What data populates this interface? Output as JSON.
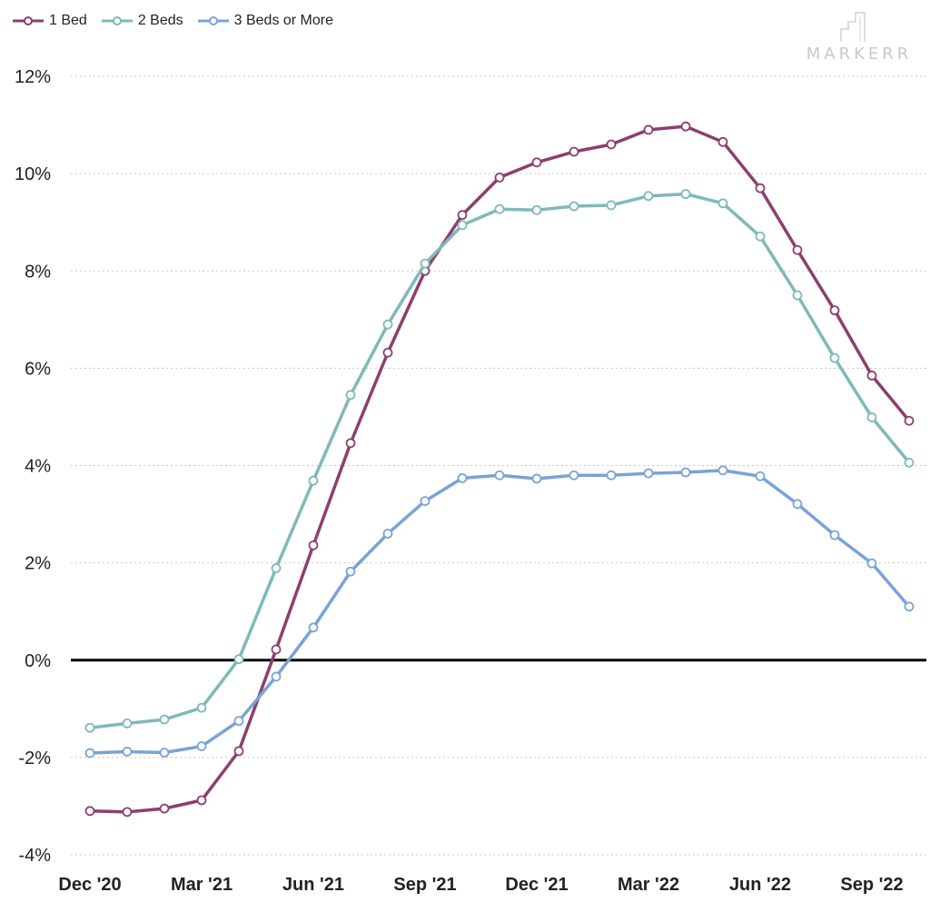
{
  "legend": [
    {
      "name": "1 Bed",
      "color": "#8c3f6e"
    },
    {
      "name": "2 Beds",
      "color": "#7fb9b8"
    },
    {
      "name": "3 Beds or More",
      "color": "#7aa3d6"
    }
  ],
  "logo": {
    "text": "MARKERR"
  },
  "chart_data": {
    "type": "line",
    "title": "",
    "xlabel": "",
    "ylabel": "",
    "ylim": [
      -4,
      12
    ],
    "y_ticks": [
      "-4%",
      "-2%",
      "0%",
      "2%",
      "4%",
      "6%",
      "8%",
      "10%",
      "12%"
    ],
    "y_tick_values": [
      -4,
      -2,
      0,
      2,
      4,
      6,
      8,
      10,
      12
    ],
    "grid": "horizontal dotted",
    "legend_position": "top-left",
    "x": [
      "Dec '20",
      "Jan '21",
      "Feb '21",
      "Mar '21",
      "Apr '21",
      "May '21",
      "Jun '21",
      "Jul '21",
      "Aug '21",
      "Sep '21",
      "Oct '21",
      "Nov '21",
      "Dec '21",
      "Jan '22",
      "Feb '22",
      "Mar '22",
      "Apr '22",
      "May '22",
      "Jun '22",
      "Jul '22",
      "Aug '22",
      "Sep '22",
      "Oct '22"
    ],
    "x_tick_labels": [
      "Dec '20",
      "Mar '21",
      "Jun '21",
      "Sep '21",
      "Dec '21",
      "Mar '22",
      "Jun '22",
      "Sep '22"
    ],
    "x_tick_indices": [
      0,
      3,
      6,
      9,
      12,
      15,
      18,
      21
    ],
    "series": [
      {
        "name": "1 Bed",
        "color": "#8c3f6e",
        "values": [
          -3.1,
          -3.12,
          -3.05,
          -2.88,
          -1.87,
          0.22,
          2.36,
          4.46,
          6.32,
          8.0,
          9.15,
          9.92,
          10.23,
          10.45,
          10.6,
          10.9,
          10.97,
          10.65,
          9.7,
          8.43,
          7.19,
          5.85,
          4.92
        ]
      },
      {
        "name": "2 Beds",
        "color": "#7fb9b8",
        "values": [
          -1.39,
          -1.3,
          -1.22,
          -0.98,
          0.02,
          1.89,
          3.69,
          5.45,
          6.9,
          8.15,
          8.94,
          9.27,
          9.25,
          9.33,
          9.35,
          9.54,
          9.58,
          9.39,
          8.71,
          7.5,
          6.21,
          4.99,
          4.06
        ]
      },
      {
        "name": "3 Beds or More",
        "color": "#7aa3d6",
        "values": [
          -1.91,
          -1.88,
          -1.9,
          -1.77,
          -1.25,
          -0.34,
          0.67,
          1.82,
          2.6,
          3.27,
          3.74,
          3.8,
          3.73,
          3.8,
          3.8,
          3.84,
          3.86,
          3.9,
          3.78,
          3.21,
          2.57,
          1.99,
          1.1
        ]
      }
    ]
  }
}
